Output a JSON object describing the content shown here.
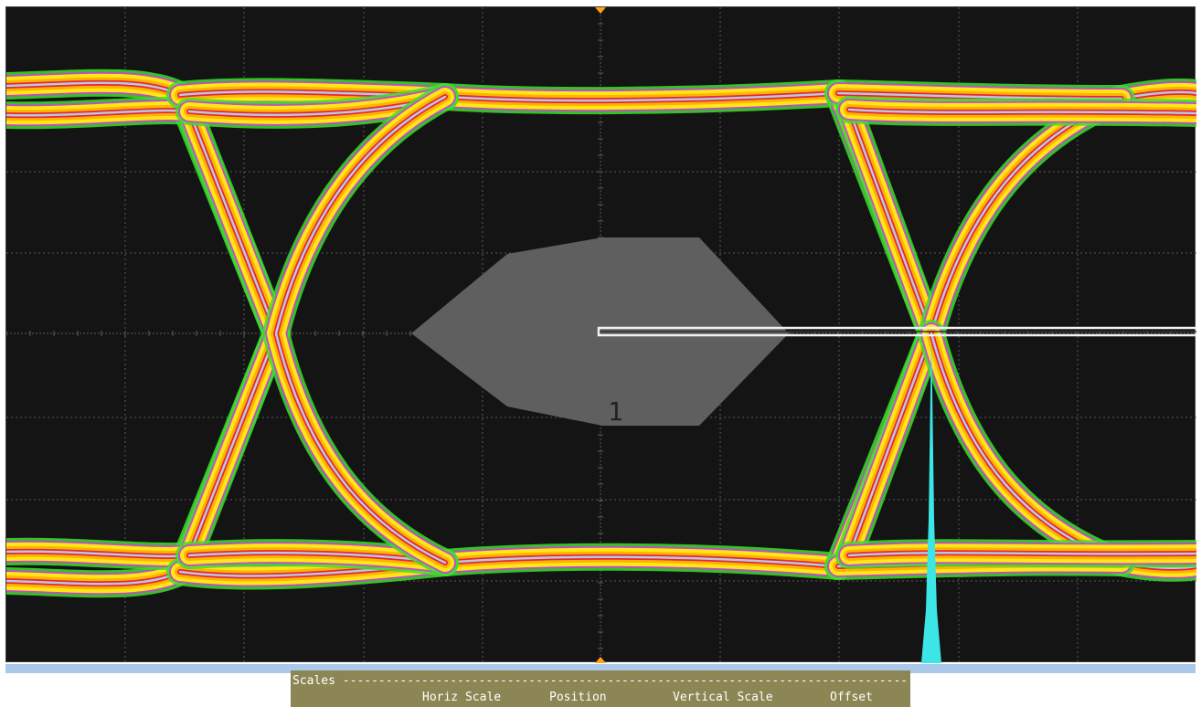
{
  "scope": {
    "mask_label": "1",
    "colors": {
      "background": "#141414",
      "grid": "#5a5a5a",
      "mask": "#5f5f5f",
      "marker": "#ff9f1a",
      "histogram": "#3de6e6",
      "trace_core": "#b9c9dc",
      "trace_hot": "#e8243a",
      "trace_warm": "#ffb300",
      "trace_mid": "#ffe619",
      "trace_edge_magenta": "#d63be0",
      "trace_edge_green": "#39e02a"
    }
  },
  "scales_panel": {
    "title": "Scales",
    "dashes": "-----------------------------------------------------------------------------------",
    "columns": [
      "Horiz Scale",
      "Position",
      "Vertical Scale",
      "Offset"
    ]
  }
}
